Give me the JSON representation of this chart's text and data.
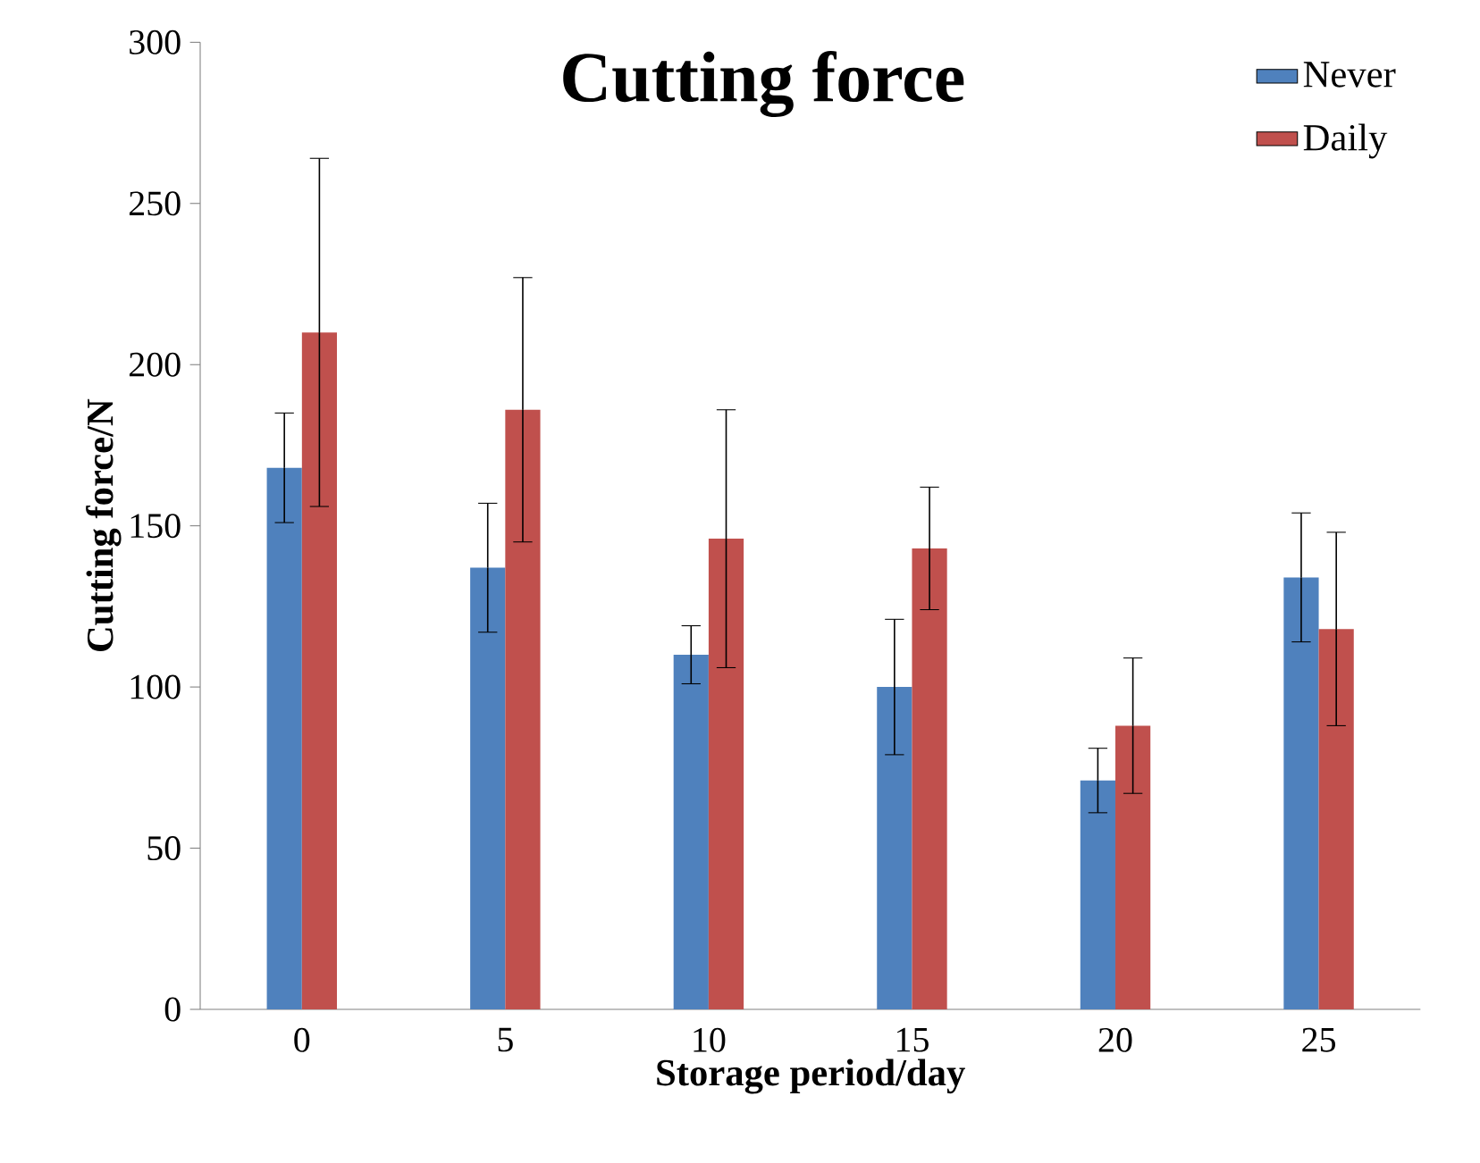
{
  "chart_data": {
    "type": "bar",
    "title": "Cutting force",
    "xlabel": "Storage period/day",
    "ylabel": "Cutting force/N",
    "categories": [
      "0",
      "5",
      "10",
      "15",
      "20",
      "25"
    ],
    "series": [
      {
        "name": "Never",
        "color": "#4f81bd",
        "values": [
          168,
          137,
          110,
          100,
          71,
          134
        ],
        "errors": [
          17,
          20,
          9,
          21,
          10,
          20
        ]
      },
      {
        "name": "Daily",
        "color": "#c0504d",
        "values": [
          210,
          186,
          146,
          143,
          88,
          118
        ],
        "errors": [
          54,
          41,
          40,
          19,
          21,
          30
        ]
      }
    ],
    "ylim": [
      0,
      300
    ],
    "yticks": [
      0,
      50,
      100,
      150,
      200,
      250,
      300
    ],
    "legend": "top right"
  }
}
